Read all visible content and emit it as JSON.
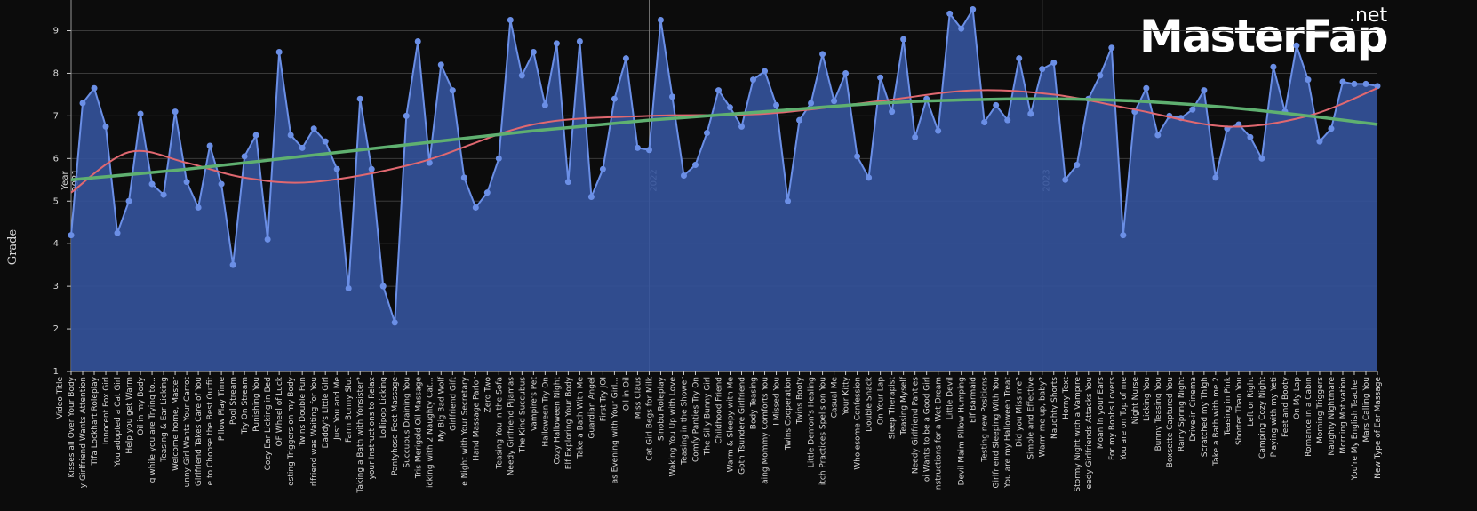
{
  "chart_data": {
    "type": "area",
    "y_label": "Grade",
    "x_label": "Video Title",
    "legend_title": "Year",
    "watermark": {
      "main": "MasterFap",
      "suffix": ".net"
    },
    "categories": [
      "Kisses all Over Your Body",
      "y Girlfriend Wants Attention",
      "Tifa Lockhart Roleplay",
      "Innocent Fox Girl",
      "You adopted a Cat Girl",
      "Help you get Warm",
      "Oil in my Body",
      "g while you are Trying to...",
      "Teasing & Ear Licking",
      "Welcome home, Master",
      "unny Girl Wants Your Carrot",
      "Girlfriend Takes Care of You",
      "e to Choose the Best Outfit",
      "Pillow Play Time",
      "Pool Stream",
      "Try On Stream",
      "Punishing You",
      "Cozy Ear Licking in Bed",
      "OF Wheel of Luck",
      "esting Triggers on my Body",
      "Twins Double Fun",
      "rlfriend was Waiting for You",
      "Daddy's Little Girl",
      "Just You and Me",
      "Farm Bunny Slut",
      "Taking a Bath with Yonsister?",
      "your Instructions to Relax",
      "Lollipop Licking",
      "Pantyhose Feet Massage",
      "Succubus Draining You",
      "Tris Merigold Oil Massage",
      "icking with 2 Naughty Cat...",
      "My Big Bad Wolf",
      "Girlfriend Gift",
      "e Night with Your Secretary",
      "Hand Massage Parlor",
      "Zero Two",
      "Teasing You in the Sofa",
      "Needy Girlfriend Pijamas",
      "The Kind Succubus",
      "Vampire's Pet",
      "Halloween Try On",
      "Cozy Halloween Night",
      "Elf Exploring Your Body",
      "Take a Bath With Me",
      "Guardian Angel",
      "First Try JOI",
      "as Evening with Your Girl...",
      "Oil in Oil",
      "Miss Claus",
      "Cat Girl Begs for Milk",
      "Sinobu Roleplay",
      "Waking You Up with Love",
      "Teasing in the Shower",
      "Comfy Panties Try On",
      "The Silly Bunny Girl",
      "Childhood Friend",
      "Warm & Sleepy with Me",
      "Goth Tsundere Girlfriend",
      "Body Teasing",
      "aing Mommy Comforts You",
      "I Missed You",
      "Twins Cooperation",
      "Twins Booty",
      "Little Demon's Healing",
      "itch Practices Spells on You",
      "Casual Me",
      "Your Kitty",
      "Wholesome Confession",
      "Double Snack",
      "On Your Lap",
      "Sleep Therapist",
      "Teasing Myself",
      "Needy Girlfriend Panties",
      "oi Wants to be a Good Girl",
      "nstructions for a Wet Dream",
      "Little Devil",
      "Devil Maim Pillow Humping",
      "Elf Barmaid",
      "Testing new Positions",
      "Girlfriend Sleeping With You",
      "You are my Halloween Treat",
      "Did you Miss me?",
      "Simple and Effective",
      "Warm me up, baby?",
      "Naughty Shorts",
      "Horny Text",
      "Stormy Night with a Vampire",
      "eedy Girlfriends Attacks You",
      "Moan in your Ears",
      "For my Boobs Lovers",
      "You are on Top of me",
      "Night Nurse",
      "Licking You",
      "Bunny Teasing You",
      "Boxsette Captured You",
      "Rainy Spring Night",
      "Drive-in Cinema",
      "Scratched my Thigh",
      "Take a Bath with me 2",
      "Teasing in Pink",
      "Shorter Than You",
      "Left or Right",
      "Camping Cozy Night",
      "Playing with my Yeti",
      "Feet and Booty",
      "On My Lap",
      "Romance in a Cabin",
      "Morning Triggers",
      "Naughty Nightmare",
      "Morning Motivation",
      "You're My English Teacher",
      "Mars Calling You",
      "New Type of Ear Massage"
    ],
    "values": [
      4.2,
      7.3,
      7.65,
      6.75,
      4.25,
      5.0,
      7.05,
      5.4,
      5.15,
      7.1,
      5.45,
      4.85,
      6.3,
      5.4,
      3.5,
      6.05,
      6.55,
      4.1,
      8.5,
      6.55,
      6.25,
      6.7,
      6.4,
      5.75,
      2.95,
      7.4,
      5.75,
      3.0,
      2.15,
      7.0,
      8.75,
      5.9,
      8.2,
      7.6,
      5.55,
      4.85,
      5.2,
      6.0,
      9.25,
      7.95,
      8.5,
      7.25,
      8.7,
      5.45,
      8.75,
      5.1,
      5.75,
      7.4,
      8.35,
      6.25,
      6.2,
      9.25,
      7.45,
      5.6,
      5.85,
      6.6,
      7.6,
      7.2,
      6.75,
      7.85,
      8.05,
      7.25,
      5.0,
      6.9,
      7.3,
      8.45,
      7.35,
      8.0,
      6.05,
      5.55,
      7.9,
      7.1,
      8.8,
      6.5,
      7.4,
      6.65,
      9.4,
      9.05,
      9.5,
      6.85,
      7.25,
      6.9,
      8.35,
      7.05,
      8.1,
      8.25,
      5.5,
      5.85,
      7.4,
      7.95,
      8.6,
      4.2,
      7.1,
      7.65,
      6.55,
      7.0,
      6.95,
      7.15,
      7.6,
      5.55,
      6.7,
      6.8,
      6.5,
      6.0,
      8.15,
      7.1,
      8.65,
      7.85,
      6.4,
      6.7,
      7.8,
      7.75,
      7.75,
      7.7
    ],
    "color": "#6b8fe6",
    "trends": [
      {
        "color": "#e06870",
        "x": [
          0,
          5,
          10,
          15,
          21,
          30,
          40,
          50,
          60,
          70,
          78,
          85,
          92,
          100,
          107,
          113
        ],
        "values": [
          5.2,
          6.15,
          5.9,
          5.55,
          5.45,
          5.9,
          6.8,
          7.0,
          7.05,
          7.35,
          7.6,
          7.5,
          7.15,
          6.75,
          7.0,
          7.65
        ]
      },
      {
        "color": "#5fb070",
        "x": [
          0,
          10,
          20,
          30,
          40,
          50,
          60,
          70,
          78,
          85,
          92,
          100,
          107,
          113
        ],
        "values": [
          5.5,
          5.75,
          6.05,
          6.35,
          6.65,
          6.9,
          7.1,
          7.3,
          7.38,
          7.4,
          7.35,
          7.2,
          7.0,
          6.8
        ]
      }
    ],
    "year_markers": [
      {
        "label": "2021",
        "category": "Kisses all Over Your Body"
      },
      {
        "label": "2022",
        "category": "Cat Girl Begs for Milk"
      },
      {
        "label": "2023",
        "category": "Warm me up, baby?"
      }
    ],
    "ylim": [
      1,
      9.72
    ],
    "yticks": [
      1,
      2,
      3,
      4,
      5,
      6,
      7,
      8,
      9
    ],
    "grid": true
  }
}
